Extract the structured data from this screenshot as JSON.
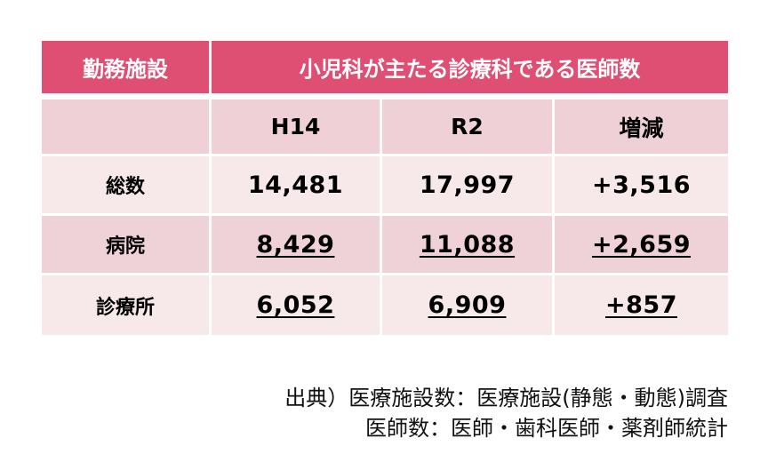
{
  "table": {
    "header": {
      "facility_label": "勤務施設",
      "title": "小児科が主たる診療科である医師数"
    },
    "subheader": {
      "blank": "",
      "col1": "H14",
      "col2": "R2",
      "col3": "増減"
    },
    "rows": [
      {
        "label": "総数",
        "h14": "14,481",
        "r2": "17,997",
        "change": "+3,516"
      },
      {
        "label": "病院",
        "h14": "8,429",
        "r2": "11,088",
        "change": "+2,659"
      },
      {
        "label": "診療所",
        "h14": "6,052",
        "r2": "6,909",
        "change": "+857"
      }
    ],
    "colors": {
      "header_bg": "#df4f73",
      "subheader_bg": "#eed0d6",
      "row_light": "#f7e8ea",
      "row_dark": "#efd2d8"
    }
  },
  "source": {
    "line1": "出典）医療施設数：医療施設(静態・動態)調査",
    "line2": "医師数：医師・歯科医師・薬剤師統計"
  }
}
